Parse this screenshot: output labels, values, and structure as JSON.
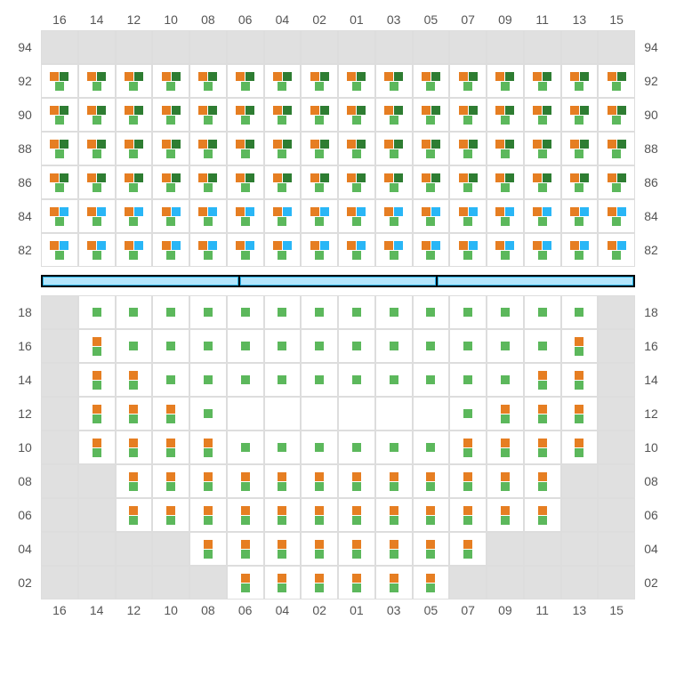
{
  "colors": {
    "orange": "#e67e22",
    "green": "#5cb85c",
    "dgreen": "#2e7d32",
    "blue": "#29b6f6",
    "empty_bg": "#e0e0e0",
    "active_bg": "#ffffff",
    "border": "#dddddd",
    "divider_bg": "#b3e5fc",
    "divider_border": "#29b6f6",
    "label_color": "#555555"
  },
  "font_size_labels": 14,
  "columns": [
    "16",
    "14",
    "12",
    "10",
    "08",
    "06",
    "04",
    "02",
    "01",
    "03",
    "05",
    "07",
    "09",
    "11",
    "13",
    "15"
  ],
  "upper_rows": [
    "94",
    "92",
    "90",
    "88",
    "86",
    "84",
    "82"
  ],
  "lower_rows": [
    "18",
    "16",
    "14",
    "12",
    "10",
    "08",
    "06",
    "04",
    "02"
  ],
  "seat_types": {
    "E": {
      "active": false,
      "content": []
    },
    "A": {
      "active": true,
      "content": [
        [
          "orange",
          "dgreen"
        ],
        [
          "green"
        ]
      ]
    },
    "B": {
      "active": true,
      "content": [
        [
          "orange",
          "blue"
        ],
        [
          "green"
        ]
      ]
    },
    "C": {
      "active": true,
      "content": [
        [
          "orange"
        ],
        [
          "green"
        ]
      ]
    },
    "G": {
      "active": true,
      "content": [
        [
          "green"
        ]
      ]
    },
    "X": {
      "active": true,
      "content": []
    }
  },
  "upper_grid": [
    [
      "E",
      "E",
      "E",
      "E",
      "E",
      "E",
      "E",
      "E",
      "E",
      "E",
      "E",
      "E",
      "E",
      "E",
      "E",
      "E"
    ],
    [
      "A",
      "A",
      "A",
      "A",
      "A",
      "A",
      "A",
      "A",
      "A",
      "A",
      "A",
      "A",
      "A",
      "A",
      "A",
      "A"
    ],
    [
      "A",
      "A",
      "A",
      "A",
      "A",
      "A",
      "A",
      "A",
      "A",
      "A",
      "A",
      "A",
      "A",
      "A",
      "A",
      "A"
    ],
    [
      "A",
      "A",
      "A",
      "A",
      "A",
      "A",
      "A",
      "A",
      "A",
      "A",
      "A",
      "A",
      "A",
      "A",
      "A",
      "A"
    ],
    [
      "A",
      "A",
      "A",
      "A",
      "A",
      "A",
      "A",
      "A",
      "A",
      "A",
      "A",
      "A",
      "A",
      "A",
      "A",
      "A"
    ],
    [
      "B",
      "B",
      "B",
      "B",
      "B",
      "B",
      "B",
      "B",
      "B",
      "B",
      "B",
      "B",
      "B",
      "B",
      "B",
      "B"
    ],
    [
      "B",
      "B",
      "B",
      "B",
      "B",
      "B",
      "B",
      "B",
      "B",
      "B",
      "B",
      "B",
      "B",
      "B",
      "B",
      "B"
    ]
  ],
  "lower_grid": [
    [
      "E",
      "G",
      "G",
      "G",
      "G",
      "G",
      "G",
      "G",
      "G",
      "G",
      "G",
      "G",
      "G",
      "G",
      "G",
      "E"
    ],
    [
      "E",
      "C",
      "G",
      "G",
      "G",
      "G",
      "G",
      "G",
      "G",
      "G",
      "G",
      "G",
      "G",
      "G",
      "C",
      "E"
    ],
    [
      "E",
      "C",
      "C",
      "G",
      "G",
      "G",
      "G",
      "G",
      "G",
      "G",
      "G",
      "G",
      "G",
      "C",
      "C",
      "E"
    ],
    [
      "E",
      "C",
      "C",
      "C",
      "G",
      "X",
      "X",
      "X",
      "X",
      "X",
      "X",
      "G",
      "C",
      "C",
      "C",
      "E"
    ],
    [
      "E",
      "C",
      "C",
      "C",
      "C",
      "G",
      "G",
      "G",
      "G",
      "G",
      "G",
      "C",
      "C",
      "C",
      "C",
      "E"
    ],
    [
      "E",
      "E",
      "C",
      "C",
      "C",
      "C",
      "C",
      "C",
      "C",
      "C",
      "C",
      "C",
      "C",
      "C",
      "E",
      "E"
    ],
    [
      "E",
      "E",
      "C",
      "C",
      "C",
      "C",
      "C",
      "C",
      "C",
      "C",
      "C",
      "C",
      "C",
      "C",
      "E",
      "E"
    ],
    [
      "E",
      "E",
      "E",
      "E",
      "C",
      "C",
      "C",
      "C",
      "C",
      "C",
      "C",
      "C",
      "E",
      "E",
      "E",
      "E"
    ],
    [
      "E",
      "E",
      "E",
      "E",
      "E",
      "C",
      "C",
      "C",
      "C",
      "C",
      "C",
      "E",
      "E",
      "E",
      "E",
      "E"
    ]
  ],
  "divider_segments": 3
}
